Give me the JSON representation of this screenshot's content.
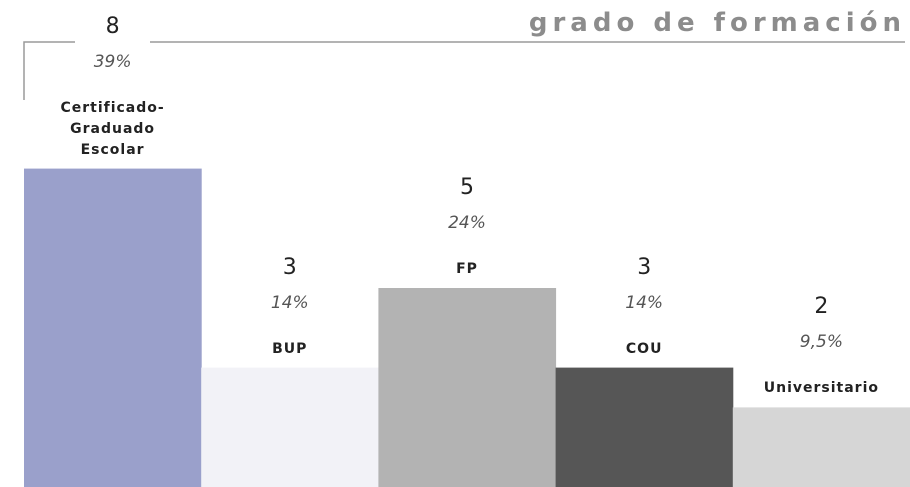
{
  "chart_data": {
    "type": "bar",
    "title": "grado de formación",
    "categories": [
      "Certificado-Graduado\nEscolar",
      "BUP",
      "FP",
      "COU",
      "Universitario"
    ],
    "values": [
      8,
      3,
      5,
      3,
      2
    ],
    "shares": [
      39,
      14,
      24,
      14,
      9.5
    ],
    "share_labels": [
      "39%",
      "14%",
      "24%",
      "14%",
      "9,5%"
    ],
    "colors": [
      "#9aa0cb",
      "#f2f2f7",
      "#b3b3b3",
      "#565656",
      "#d6d6d6"
    ]
  }
}
